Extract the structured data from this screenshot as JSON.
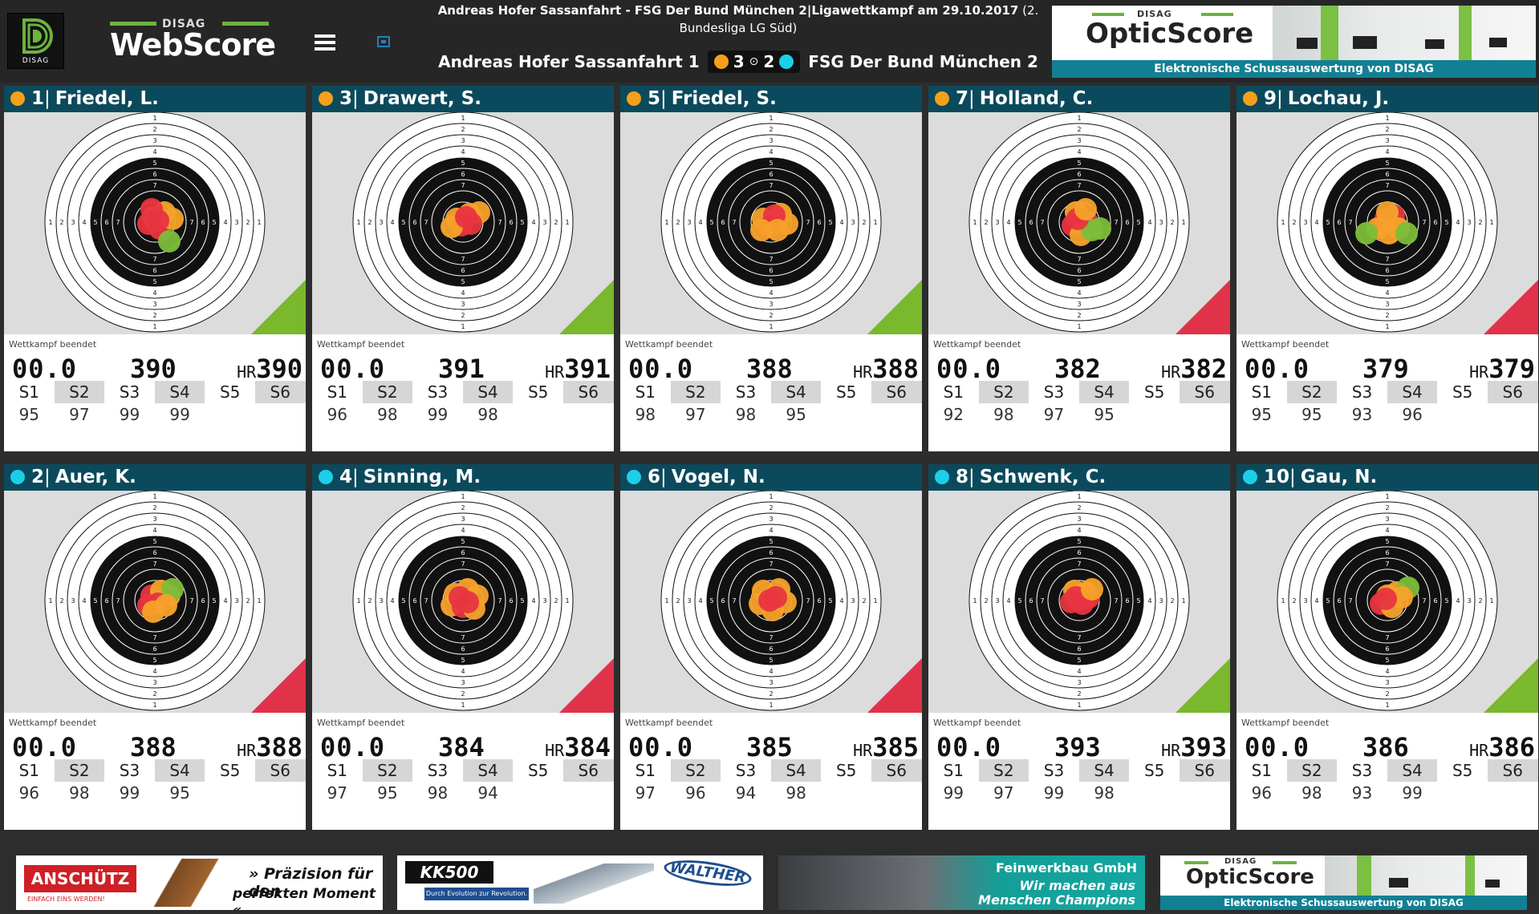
{
  "header": {
    "disag_label": "DISAG",
    "webscore_small": "DISAG",
    "webscore_big": "WebScore",
    "match_title": "Andreas Hofer Sassanfahrt - FSG Der Bund München 2|Ligawettkampf am 29.10.2017",
    "match_title_suffix": " (2. Bundesliga LG Süd)",
    "team_home": "Andreas Hofer Sassanfahrt 1",
    "team_away": "FSG Der Bund München 2",
    "score_home": "3",
    "score_away": "2",
    "score_sep": "⊙"
  },
  "banner": {
    "disag": "DISAG",
    "brand": "OpticScore",
    "tagline": "Elektronische Schussauswertung von DISAG"
  },
  "colors": {
    "home": "#f5a01a",
    "away": "#1ccfe8",
    "header_bg": "#0b4a5c",
    "win": "#7ab82e",
    "loss": "#e0334a"
  },
  "shooters": [
    {
      "pos": "1",
      "name": "Friedel, L.",
      "team": "home",
      "status": "Wettkampf beendet",
      "time": "00.0",
      "total": "390",
      "hr_label": "HR",
      "hr": "390",
      "series": [
        "S1",
        "S2",
        "S3",
        "S4",
        "S5",
        "S6"
      ],
      "values": [
        "95",
        "97",
        "99",
        "99",
        "",
        ""
      ],
      "result": "win"
    },
    {
      "pos": "3",
      "name": "Drawert, S.",
      "team": "home",
      "status": "Wettkampf beendet",
      "time": "00.0",
      "total": "391",
      "hr_label": "HR",
      "hr": "391",
      "series": [
        "S1",
        "S2",
        "S3",
        "S4",
        "S5",
        "S6"
      ],
      "values": [
        "96",
        "98",
        "99",
        "98",
        "",
        ""
      ],
      "result": "win"
    },
    {
      "pos": "5",
      "name": "Friedel, S.",
      "team": "home",
      "status": "Wettkampf beendet",
      "time": "00.0",
      "total": "388",
      "hr_label": "HR",
      "hr": "388",
      "series": [
        "S1",
        "S2",
        "S3",
        "S4",
        "S5",
        "S6"
      ],
      "values": [
        "98",
        "97",
        "98",
        "95",
        "",
        ""
      ],
      "result": "win"
    },
    {
      "pos": "7",
      "name": "Holland, C.",
      "team": "home",
      "status": "Wettkampf beendet",
      "time": "00.0",
      "total": "382",
      "hr_label": "HR",
      "hr": "382",
      "series": [
        "S1",
        "S2",
        "S3",
        "S4",
        "S5",
        "S6"
      ],
      "values": [
        "92",
        "98",
        "97",
        "95",
        "",
        ""
      ],
      "result": "loss"
    },
    {
      "pos": "9",
      "name": "Lochau, J.",
      "team": "home",
      "status": "Wettkampf beendet",
      "time": "00.0",
      "total": "379",
      "hr_label": "HR",
      "hr": "379",
      "series": [
        "S1",
        "S2",
        "S3",
        "S4",
        "S5",
        "S6"
      ],
      "values": [
        "95",
        "95",
        "93",
        "96",
        "",
        ""
      ],
      "result": "loss"
    },
    {
      "pos": "2",
      "name": "Auer, K.",
      "team": "away",
      "status": "Wettkampf beendet",
      "time": "00.0",
      "total": "388",
      "hr_label": "HR",
      "hr": "388",
      "series": [
        "S1",
        "S2",
        "S3",
        "S4",
        "S5",
        "S6"
      ],
      "values": [
        "96",
        "98",
        "99",
        "95",
        "",
        ""
      ],
      "result": "loss"
    },
    {
      "pos": "4",
      "name": "Sinning, M.",
      "team": "away",
      "status": "Wettkampf beendet",
      "time": "00.0",
      "total": "384",
      "hr_label": "HR",
      "hr": "384",
      "series": [
        "S1",
        "S2",
        "S3",
        "S4",
        "S5",
        "S6"
      ],
      "values": [
        "97",
        "95",
        "98",
        "94",
        "",
        ""
      ],
      "result": "loss"
    },
    {
      "pos": "6",
      "name": "Vogel, N.",
      "team": "away",
      "status": "Wettkampf beendet",
      "time": "00.0",
      "total": "385",
      "hr_label": "HR",
      "hr": "385",
      "series": [
        "S1",
        "S2",
        "S3",
        "S4",
        "S5",
        "S6"
      ],
      "values": [
        "97",
        "96",
        "94",
        "98",
        "",
        ""
      ],
      "result": "loss"
    },
    {
      "pos": "8",
      "name": "Schwenk, C.",
      "team": "away",
      "status": "Wettkampf beendet",
      "time": "00.0",
      "total": "393",
      "hr_label": "HR",
      "hr": "393",
      "series": [
        "S1",
        "S2",
        "S3",
        "S4",
        "S5",
        "S6"
      ],
      "values": [
        "99",
        "97",
        "99",
        "98",
        "",
        ""
      ],
      "result": "win"
    },
    {
      "pos": "10",
      "name": "Gau, N.",
      "team": "away",
      "status": "Wettkampf beendet",
      "time": "00.0",
      "total": "386",
      "hr_label": "HR",
      "hr": "386",
      "series": [
        "S1",
        "S2",
        "S3",
        "S4",
        "S5",
        "S6"
      ],
      "values": [
        "96",
        "98",
        "93",
        "99",
        "",
        ""
      ],
      "result": "win"
    }
  ],
  "target": {
    "ring_numbers_vertical": [
      "1",
      "2",
      "3",
      "4",
      "5",
      "6",
      "7",
      "7",
      "6",
      "5",
      "4",
      "3",
      "2",
      "1"
    ],
    "ring_numbers_horizontal": [
      "1",
      "2",
      "3",
      "4",
      "5",
      "6",
      "7",
      "7",
      "6",
      "5",
      "4",
      "3",
      "2",
      "1"
    ]
  },
  "sponsors": {
    "anschutz_logo": "ANSCHÜTZ",
    "anschutz_sub": "EINFACH EINS WERDEN!",
    "anschutz_quote1": "» Präzision für den",
    "anschutz_quote2": "perfekten Moment «",
    "kk_logo": "KK500",
    "kk_sub": "Durch Evolution zur Revolution.",
    "walther_logo": "WALTHER",
    "fwb_title": "Feinwerkbau GmbH",
    "fwb_line1": "Wir machen aus",
    "fwb_line2": "Menschen Champions"
  }
}
